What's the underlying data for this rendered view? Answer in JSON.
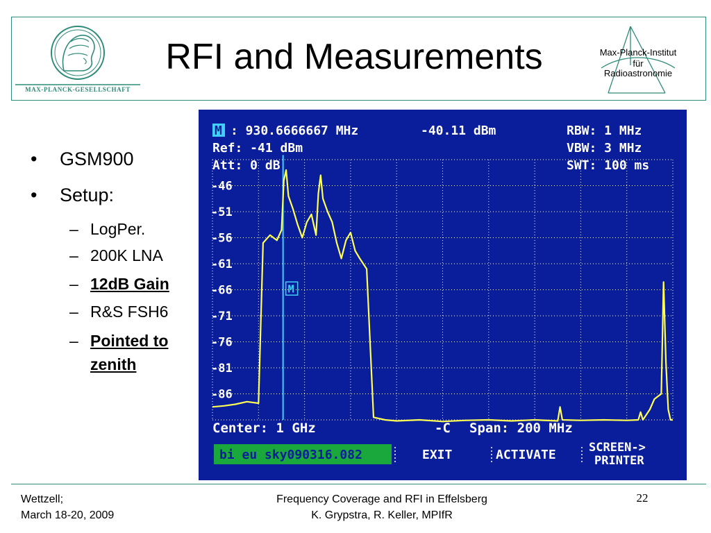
{
  "slide": {
    "title": "RFI and Measurements",
    "left_logo_text": "MAX-PLANCK-GESELLSCHAFT",
    "right_logo_lines": [
      "Max-Planck-Institut",
      "für",
      "Radioastronomie"
    ],
    "theme_color": "#2e8b78"
  },
  "bullets": {
    "items": [
      {
        "text": "GSM900",
        "level": 1,
        "underline": false
      },
      {
        "text": "Setup:",
        "level": 1,
        "underline": false
      },
      {
        "text": "LogPer.",
        "level": 2,
        "underline": false
      },
      {
        "text": "200K LNA",
        "level": 2,
        "underline": false
      },
      {
        "text": "12dB Gain",
        "level": 2,
        "underline": true
      },
      {
        "text": "R&S FSH6",
        "level": 2,
        "underline": false
      },
      {
        "text": "Pointed to zenith",
        "level": 2,
        "underline": true,
        "lines": [
          "Pointed to",
          "zenith"
        ]
      }
    ]
  },
  "analyzer": {
    "marker_symbol": "M",
    "marker_freq": ": 930.6666667 MHz",
    "marker_level": "-40.11 dBm",
    "ref": "Ref: -41 dBm",
    "att": "Att: 0 dB",
    "rbw": "RBW: 1 MHz",
    "vbw": "VBW: 3 MHz",
    "swt": "SWT: 100 ms",
    "center": "Center: 1 GHz",
    "span_icon": "-C",
    "span": "Span: 200 MHz",
    "softkeys": {
      "file": "bi eu sky090316.082",
      "exit": "EXIT",
      "activate": "ACTIVATE",
      "screen_line1": "SCREEN->",
      "screen_line2": "PRINTER"
    },
    "colors": {
      "background": "#0a1d9a",
      "trace": "#ffff55",
      "marker": "#40d0ff",
      "text": "#ffffff",
      "file_bg": "#1aa83c"
    }
  },
  "chart_data": {
    "type": "line",
    "title": "",
    "xlabel": "",
    "ylabel": "",
    "x_unit": "MHz",
    "xlim": [
      900,
      1100
    ],
    "ylim": [
      -91,
      -41
    ],
    "yticks": [
      "-46",
      "-51",
      "-56",
      "-61",
      "-66",
      "-71",
      "-76",
      "-81",
      "-86"
    ],
    "grid": true,
    "series": [
      {
        "x": [
          900,
          905,
          910,
          915,
          920,
          922,
          925,
          928,
          930,
          931,
          932,
          933,
          935,
          937,
          939,
          941,
          943,
          945,
          946,
          947,
          948,
          950,
          952,
          954,
          956,
          958,
          960,
          962,
          964,
          967,
          970,
          975,
          980,
          990,
          1000,
          1010,
          1020,
          1030,
          1040,
          1050,
          1051,
          1052,
          1060,
          1070,
          1080,
          1085,
          1086,
          1087,
          1090,
          1092,
          1095,
          1096,
          1097,
          1098,
          1099,
          1100
        ],
        "y": [
          -88.5,
          -88.3,
          -88.0,
          -87.5,
          -87.8,
          -57.0,
          -55.5,
          -56.5,
          -54.5,
          -45.0,
          -43.0,
          -48.0,
          -50.5,
          -53.5,
          -56.0,
          -53.0,
          -51.5,
          -55.5,
          -47.5,
          -44.0,
          -48.5,
          -51.0,
          -53.0,
          -57.0,
          -60.0,
          -56.5,
          -55.0,
          -58.5,
          -60.0,
          -62.0,
          -90.5,
          -91.0,
          -91.2,
          -91.0,
          -91.3,
          -91.1,
          -91.0,
          -91.2,
          -91.0,
          -91.2,
          -88.5,
          -91.0,
          -91.1,
          -91.0,
          -91.1,
          -91.0,
          -89.5,
          -91.0,
          -89.0,
          -87.0,
          -86.0,
          -64.5,
          -80.0,
          -89.0,
          -91.0,
          -91.0
        ]
      }
    ],
    "marker": {
      "x": 930.6666667,
      "y": -40.11
    }
  },
  "footer": {
    "left_lines": [
      "Wettzell;",
      "March 18-20, 2009"
    ],
    "center_lines": [
      "Frequency Coverage and RFI in Effelsberg",
      "K. Grypstra, R. Keller, MPIfR"
    ],
    "page": "22"
  }
}
